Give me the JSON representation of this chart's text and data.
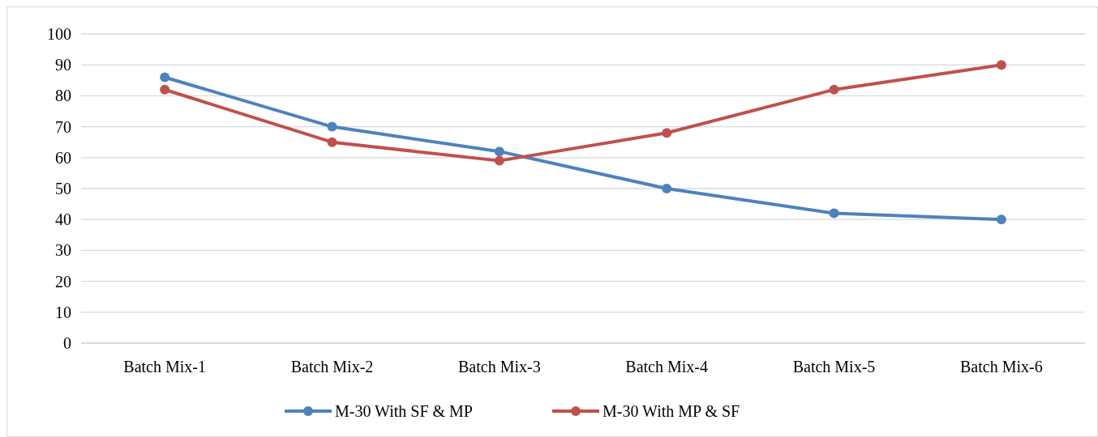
{
  "chart_data": {
    "type": "line",
    "categories": [
      "Batch Mix-1",
      "Batch Mix-2",
      "Batch Mix-3",
      "Batch Mix-4",
      "Batch Mix-5",
      "Batch Mix-6"
    ],
    "series": [
      {
        "name": "M-30 With SF & MP",
        "color": "#4f81bd",
        "values": [
          86,
          70,
          62,
          50,
          42,
          40
        ]
      },
      {
        "name": "M-30 With MP & SF",
        "color": "#c0504d",
        "values": [
          82,
          65,
          59,
          68,
          82,
          90
        ]
      }
    ],
    "ylim": [
      0,
      100
    ],
    "yticks": [
      0,
      10,
      20,
      30,
      40,
      50,
      60,
      70,
      80,
      90,
      100
    ],
    "grid": "y",
    "legend": "bottom",
    "marker": "circle",
    "line_style": "solid"
  }
}
